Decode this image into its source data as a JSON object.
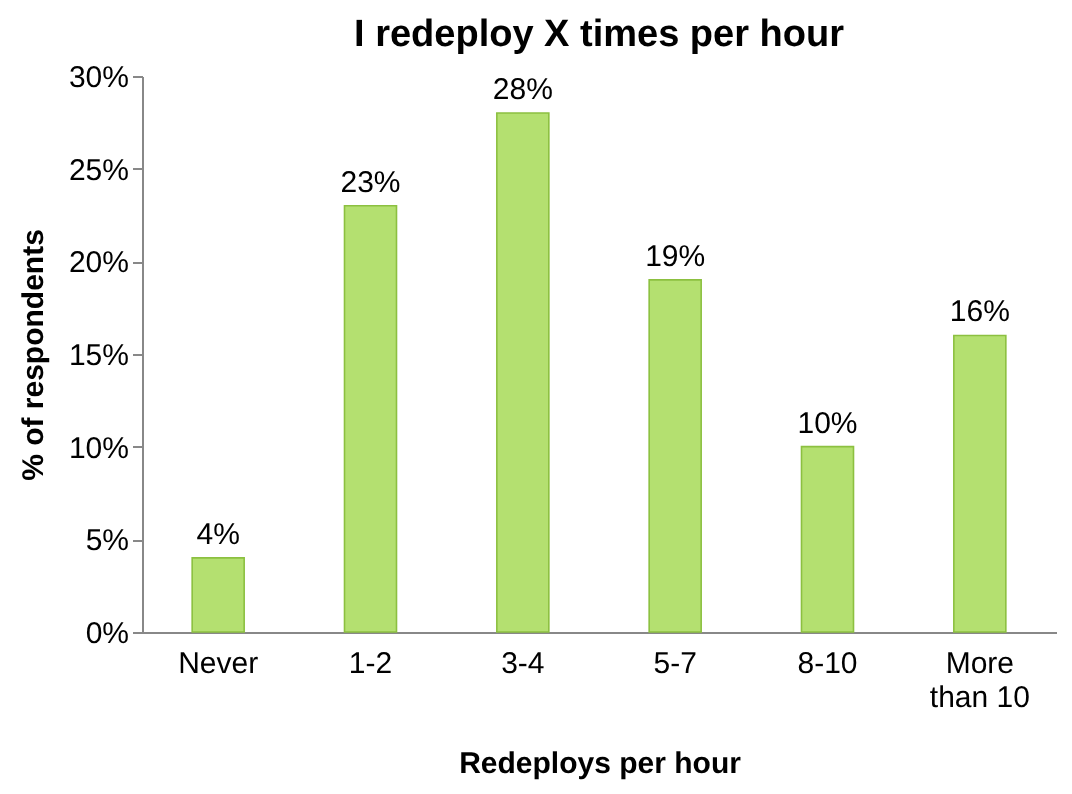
{
  "chart_data": {
    "type": "bar",
    "title": "I redeploy X times per hour",
    "xlabel": "Redeploys per hour",
    "ylabel": "% of respondents",
    "categories": [
      "Never",
      "1-2",
      "3-4",
      "5-7",
      "8-10",
      "More than 10"
    ],
    "values": [
      4,
      23,
      28,
      19,
      10,
      16
    ],
    "color": "#b4e070",
    "data_labels": true,
    "value_labels": [
      "4%",
      "23%",
      "28%",
      "19%",
      "10%",
      "16%"
    ],
    "ylim": [
      0,
      30
    ],
    "yticks": [
      {
        "value": 0,
        "label": "0%"
      },
      {
        "value": 5,
        "label": "5%"
      },
      {
        "value": 10,
        "label": "10%"
      },
      {
        "value": 15,
        "label": "15%"
      },
      {
        "value": 20,
        "label": "20%"
      },
      {
        "value": 25,
        "label": "25%"
      },
      {
        "value": 30,
        "label": "30%"
      }
    ],
    "grid": false
  }
}
